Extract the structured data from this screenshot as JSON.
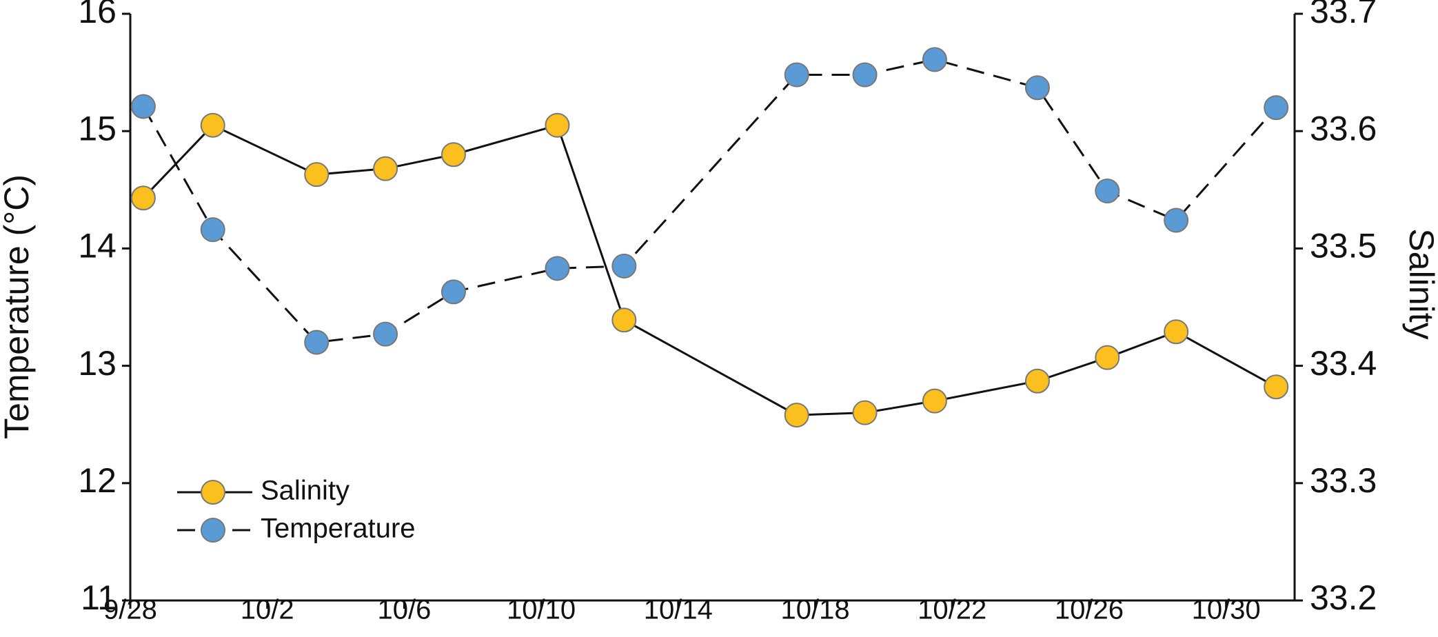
{
  "chart_data": {
    "type": "line",
    "x_label": "",
    "y_label": "Temperature (°C)",
    "y2_label": "Salinity",
    "x": [
      0.38,
      2.41,
      5.44,
      7.45,
      9.44,
      12.47,
      14.42,
      19.46,
      21.45,
      23.49,
      26.49,
      28.53,
      30.54,
      33.46
    ],
    "xlim": [
      0,
      34
    ],
    "xticks": [
      {
        "value": 0,
        "label": "9/28"
      },
      {
        "value": 4,
        "label": "10/2"
      },
      {
        "value": 8,
        "label": "10/6"
      },
      {
        "value": 12,
        "label": "10/10"
      },
      {
        "value": 16,
        "label": "10/14"
      },
      {
        "value": 20,
        "label": "10/18"
      },
      {
        "value": 24,
        "label": "10/22"
      },
      {
        "value": 28,
        "label": "10/26"
      },
      {
        "value": 32,
        "label": "10/30"
      }
    ],
    "ylim": [
      11,
      16
    ],
    "yticks": [
      11,
      12,
      13,
      14,
      15,
      16
    ],
    "y2lim": [
      33.2,
      33.7
    ],
    "y2ticks": [
      33.2,
      33.3,
      33.4,
      33.5,
      33.6,
      33.7
    ],
    "legend": "lower left",
    "series": [
      {
        "name": "Salinity",
        "axis": "y2",
        "color": "#fbbf1e",
        "line_style": "solid",
        "values": [
          33.543,
          33.605,
          33.563,
          33.568,
          33.58,
          33.605,
          33.439,
          33.358,
          33.36,
          33.37,
          33.387,
          33.407,
          33.429,
          33.382
        ]
      },
      {
        "name": "Temperature",
        "axis": "y",
        "color": "#5b9bd5",
        "line_style": "dashed",
        "values": [
          15.21,
          14.16,
          13.2,
          13.27,
          13.63,
          13.83,
          13.85,
          15.48,
          15.48,
          15.61,
          15.37,
          14.49,
          14.24,
          15.2
        ]
      }
    ]
  }
}
